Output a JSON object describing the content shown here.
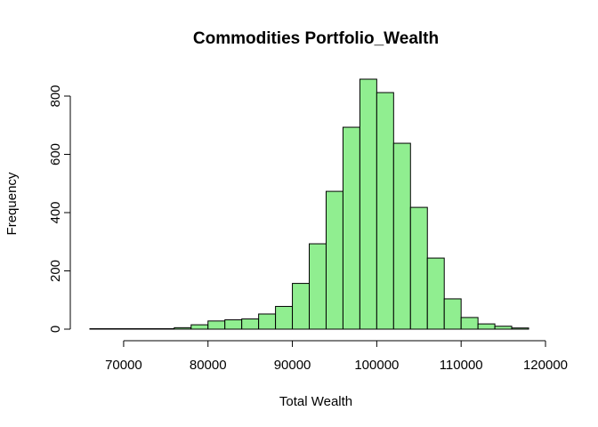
{
  "chart_data": {
    "type": "bar",
    "title": "Commodities Portfolio_Wealth",
    "xlabel": "Total Wealth",
    "ylabel": "Frequency",
    "bin_width": 2000,
    "bins": [
      {
        "start": 66000,
        "end": 68000,
        "count": 1
      },
      {
        "start": 68000,
        "end": 70000,
        "count": 0
      },
      {
        "start": 70000,
        "end": 72000,
        "count": 1
      },
      {
        "start": 72000,
        "end": 74000,
        "count": 1
      },
      {
        "start": 74000,
        "end": 76000,
        "count": 1
      },
      {
        "start": 76000,
        "end": 78000,
        "count": 5
      },
      {
        "start": 78000,
        "end": 80000,
        "count": 15
      },
      {
        "start": 80000,
        "end": 82000,
        "count": 28
      },
      {
        "start": 82000,
        "end": 84000,
        "count": 32
      },
      {
        "start": 84000,
        "end": 86000,
        "count": 35
      },
      {
        "start": 86000,
        "end": 88000,
        "count": 52
      },
      {
        "start": 88000,
        "end": 90000,
        "count": 78
      },
      {
        "start": 90000,
        "end": 92000,
        "count": 157
      },
      {
        "start": 92000,
        "end": 94000,
        "count": 293
      },
      {
        "start": 94000,
        "end": 96000,
        "count": 473
      },
      {
        "start": 96000,
        "end": 98000,
        "count": 693
      },
      {
        "start": 98000,
        "end": 100000,
        "count": 858
      },
      {
        "start": 100000,
        "end": 102000,
        "count": 812
      },
      {
        "start": 102000,
        "end": 104000,
        "count": 638
      },
      {
        "start": 104000,
        "end": 106000,
        "count": 418
      },
      {
        "start": 106000,
        "end": 108000,
        "count": 244
      },
      {
        "start": 108000,
        "end": 110000,
        "count": 104
      },
      {
        "start": 110000,
        "end": 112000,
        "count": 40
      },
      {
        "start": 112000,
        "end": 114000,
        "count": 18
      },
      {
        "start": 114000,
        "end": 116000,
        "count": 10
      },
      {
        "start": 116000,
        "end": 118000,
        "count": 4
      }
    ],
    "xlim": [
      66000,
      120000
    ],
    "ylim": [
      0,
      858
    ],
    "x_ticks": [
      70000,
      80000,
      90000,
      100000,
      110000,
      120000
    ],
    "x_tick_labels": [
      "70000",
      "80000",
      "90000",
      "100000",
      "110000",
      "120000"
    ],
    "y_ticks": [
      0,
      200,
      400,
      600,
      800
    ],
    "y_tick_labels": [
      "0",
      "200",
      "400",
      "600",
      "800"
    ],
    "grid": false,
    "bar_color": "#90ee90",
    "border_color": "#000000"
  }
}
